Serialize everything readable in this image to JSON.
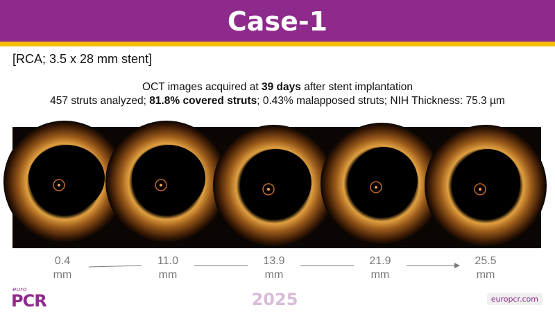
{
  "header": {
    "title": "Case-1"
  },
  "subtitle": "[RCA; 3.5 x 28 mm stent]",
  "summary": {
    "line1": [
      "OCT images acquired at ",
      "39 days",
      " after stent implantation"
    ],
    "line2": [
      "457 struts analyzed; ",
      "81.8% covered struts",
      "; 0.43% malapposed struts; NIH Thickness: 75.3 µm"
    ]
  },
  "positions": [
    {
      "value": "0.4",
      "unit": "mm"
    },
    {
      "value": "11.0",
      "unit": "mm"
    },
    {
      "value": "13.9",
      "unit": "mm"
    },
    {
      "value": "21.9",
      "unit": "mm"
    },
    {
      "value": "25.5",
      "unit": "mm"
    }
  ],
  "footer": {
    "logo_top": "euro",
    "logo_main": "PCR",
    "year": "2025",
    "site": "europcr.com"
  }
}
